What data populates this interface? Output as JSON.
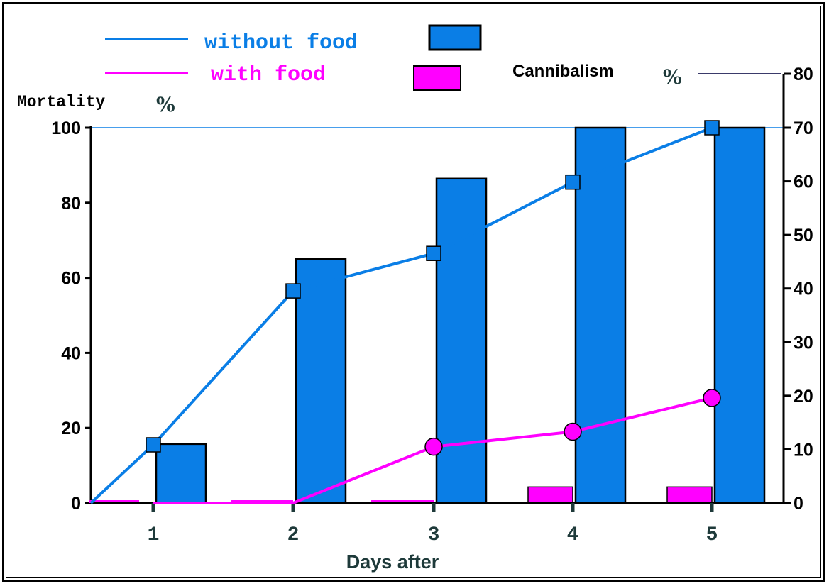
{
  "colors": {
    "without_food": "#0a7ee6",
    "with_food": "#ff00ff",
    "axis": "#000000",
    "text_dark": "#1e3a3a"
  },
  "legend": {
    "without_food_label": "without food",
    "with_food_label": "with  food"
  },
  "chart_data": {
    "type": "bar",
    "xlabel": "Days after",
    "ylabel": "Mortality",
    "ylabel_unit": "%",
    "y2label": "Cannibalism",
    "y2label_unit": "%",
    "categories": [
      "1",
      "2",
      "3",
      "4",
      "5"
    ],
    "ylim": [
      0,
      100
    ],
    "yticks": [
      "0",
      "20",
      "40",
      "60",
      "80",
      "100"
    ],
    "y2lim": [
      0,
      80
    ],
    "y2ticks": [
      "0",
      "10",
      "20",
      "30",
      "40",
      "50",
      "60",
      "70",
      "80"
    ],
    "bars_axis": "Cannibalism",
    "lines_axis": "Mortality",
    "bars": [
      {
        "name": "without food",
        "color": "#0a7ee6",
        "values": [
          11,
          45.5,
          60.5,
          70,
          70
        ]
      },
      {
        "name": "with food",
        "color": "#ff00ff",
        "values": [
          0,
          0,
          0,
          3,
          3
        ]
      }
    ],
    "lines": [
      {
        "name": "without food",
        "color": "#0a7ee6",
        "marker": "square",
        "x0": 0,
        "values": [
          15.5,
          56.5,
          66.5,
          85.5,
          100
        ]
      },
      {
        "name": "with food",
        "color": "#ff00ff",
        "marker": "circle",
        "values": [
          0,
          0,
          15,
          19,
          28
        ]
      }
    ]
  }
}
